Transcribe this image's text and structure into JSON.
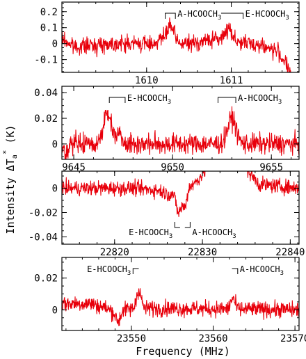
{
  "figure": {
    "xlabel": "Frequency (MHz)",
    "ylabel": {
      "main": "Intensity ΔT",
      "sub": "a",
      "sup": "*",
      "unit": " (K)"
    }
  },
  "chart_data": [
    {
      "type": "line",
      "xlim": [
        1609.0,
        1611.8
      ],
      "ylim": [
        -0.18,
        0.26
      ],
      "xticks": [
        1610,
        1611
      ],
      "yticks": [
        -0.1,
        0,
        0.1,
        0.2
      ],
      "ytick_labels": [
        "-0.1",
        "0",
        "0.1",
        "0.2"
      ],
      "xtick_labels_position": "bottom",
      "noise": 0.025,
      "baseline": [
        [
          1609.0,
          0.03
        ],
        [
          1609.15,
          -0.02
        ],
        [
          1609.6,
          0.0
        ],
        [
          1610.55,
          0.0
        ],
        [
          1610.8,
          0.03
        ],
        [
          1611.35,
          -0.01
        ],
        [
          1611.55,
          -0.05
        ],
        [
          1611.8,
          -0.24
        ]
      ],
      "features": [
        {
          "center": 1610.28,
          "width": 0.06,
          "amp": 0.11
        },
        {
          "center": 1610.16,
          "width": 0.05,
          "amp": 0.03
        },
        {
          "center": 1610.97,
          "width": 0.06,
          "amp": 0.08
        },
        {
          "center": 1611.72,
          "width": 0.04,
          "amp": -0.06
        }
      ],
      "annotations": [
        {
          "label": "A-HCOOCH",
          "sub": "3",
          "x": 1610.28,
          "ext": [
            -0.06,
            0.06
          ],
          "side": "above"
        },
        {
          "label": "E-HCOOCH",
          "sub": "3",
          "x": 1610.88,
          "ext": [
            0.0,
            0.26
          ],
          "side": "above"
        }
      ]
    },
    {
      "type": "line",
      "xlim": [
        9644.4,
        9656.4
      ],
      "ylim": [
        -0.012,
        0.045
      ],
      "xticks": [
        9645,
        9650,
        9655
      ],
      "yticks": [
        0,
        0.02,
        0.04
      ],
      "ytick_labels": [
        "0",
        "0.02",
        "0.04"
      ],
      "xtick_labels_position": "bottom",
      "noise": 0.004,
      "baseline": [
        [
          9644.4,
          0.0
        ],
        [
          9656.4,
          0.0
        ]
      ],
      "features": [
        {
          "center": 9646.7,
          "width": 0.3,
          "amp": 0.023
        },
        {
          "center": 9647.3,
          "width": 0.25,
          "amp": 0.008
        },
        {
          "center": 9653.0,
          "width": 0.3,
          "amp": 0.02
        },
        {
          "center": 9644.6,
          "width": 0.08,
          "amp": -0.01
        }
      ],
      "annotations": [
        {
          "label": "E-HCOOCH",
          "sub": "3",
          "x": 9647.2,
          "ext": [
            -0.4,
            0.4
          ],
          "side": "above"
        },
        {
          "label": "A-HCOOCH",
          "sub": "3",
          "x": 9652.7,
          "ext": [
            -0.4,
            0.5
          ],
          "side": "above"
        }
      ]
    },
    {
      "type": "line",
      "xlim": [
        22814.0,
        22841.0
      ],
      "ylim": [
        -0.046,
        0.014
      ],
      "xticks": [
        22820,
        22830,
        22840
      ],
      "yticks": [
        -0.04,
        -0.02,
        0
      ],
      "ytick_labels": [
        "-0.04",
        "-0.02",
        "0"
      ],
      "xtick_labels_position": "bottom",
      "noise": 0.003,
      "baseline": [
        [
          22814.0,
          0.0
        ],
        [
          22822.0,
          0.0
        ],
        [
          22825.5,
          -0.002
        ],
        [
          22829.0,
          0.003
        ],
        [
          22830.5,
          0.016
        ],
        [
          22831.0,
          0.03
        ],
        [
          22834.5,
          0.03
        ],
        [
          22835.2,
          0.014
        ],
        [
          22836.5,
          0.003
        ],
        [
          22841.0,
          0.0
        ]
      ],
      "features": [
        {
          "center": 22827.3,
          "width": 0.45,
          "amp": -0.02
        },
        {
          "center": 22828.0,
          "width": 0.35,
          "amp": -0.015
        },
        {
          "center": 22826.2,
          "width": 0.6,
          "amp": -0.004
        }
      ],
      "annotations": [
        {
          "label": "E-HCOOCH",
          "sub": "3",
          "x": 22827.45,
          "ext": [
            -0.6,
            0.0
          ],
          "side": "below"
        },
        {
          "label": "A-HCOOCH",
          "sub": "3",
          "x": 22828.0,
          "ext": [
            0.0,
            0.6
          ],
          "side": "below"
        }
      ]
    },
    {
      "type": "line",
      "xlim": [
        23541.5,
        23570.5
      ],
      "ylim": [
        -0.013,
        0.033
      ],
      "xticks": [
        23550,
        23560,
        23570
      ],
      "yticks": [
        0,
        0.02
      ],
      "ytick_labels": [
        "0",
        "0.02"
      ],
      "xtick_labels_position": "bottom",
      "noise": 0.0025,
      "baseline": [
        [
          23541.5,
          0.004
        ],
        [
          23545.0,
          0.004
        ],
        [
          23547.0,
          0.001
        ],
        [
          23548.0,
          -0.002
        ],
        [
          23549.0,
          0.0
        ],
        [
          23552.5,
          0.001
        ],
        [
          23570.5,
          0.0
        ]
      ],
      "features": [
        {
          "center": 23548.4,
          "width": 0.35,
          "amp": -0.006
        },
        {
          "center": 23550.9,
          "width": 0.4,
          "amp": 0.012
        },
        {
          "center": 23562.4,
          "width": 0.35,
          "amp": 0.007
        }
      ],
      "annotations": [
        {
          "label": "E-HCOOCH",
          "sub": "3",
          "x": 23550.9,
          "ext": [
            -0.7,
            0.0
          ],
          "side": "above"
        },
        {
          "label": "A-HCOOCH",
          "sub": "3",
          "x": 23562.3,
          "ext": [
            0.0,
            0.7
          ],
          "side": "above"
        }
      ]
    }
  ]
}
